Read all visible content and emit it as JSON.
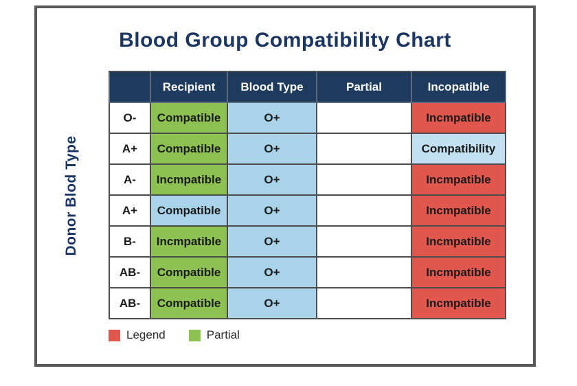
{
  "title": "Blood Group Compatibility Chart",
  "chart_data": {
    "type": "table",
    "title": "Blood Group Compatibility Chart",
    "y_axis_label": "Donor Blod Type",
    "headers": [
      "",
      "Recipient",
      "Blood Type",
      "Partial",
      "Incopatible"
    ],
    "rows": [
      {
        "cells": [
          {
            "text": "O-",
            "style": "white"
          },
          {
            "text": "Compatible",
            "style": "green"
          },
          {
            "text": "O+",
            "style": "blue"
          },
          {
            "text": "",
            "style": "white"
          },
          {
            "text": "Incmpatible",
            "style": "red"
          }
        ]
      },
      {
        "cells": [
          {
            "text": "A+",
            "style": "white"
          },
          {
            "text": "Compatible",
            "style": "green"
          },
          {
            "text": "O+",
            "style": "blue"
          },
          {
            "text": "",
            "style": "white"
          },
          {
            "text": "Compatibility",
            "style": "lightblue"
          }
        ]
      },
      {
        "cells": [
          {
            "text": "A-",
            "style": "white"
          },
          {
            "text": "Incmpatible",
            "style": "green"
          },
          {
            "text": "O+",
            "style": "blue"
          },
          {
            "text": "",
            "style": "white"
          },
          {
            "text": "Incmpatible",
            "style": "red"
          }
        ]
      },
      {
        "cells": [
          {
            "text": "A+",
            "style": "white"
          },
          {
            "text": "Compatible",
            "style": "blue"
          },
          {
            "text": "O+",
            "style": "blue"
          },
          {
            "text": "",
            "style": "white"
          },
          {
            "text": "Incmpatible",
            "style": "red"
          }
        ]
      },
      {
        "cells": [
          {
            "text": "B-",
            "style": "white"
          },
          {
            "text": "Incmpatible",
            "style": "green"
          },
          {
            "text": "O+",
            "style": "blue"
          },
          {
            "text": "",
            "style": "white"
          },
          {
            "text": "Incmpatible",
            "style": "red"
          }
        ]
      },
      {
        "cells": [
          {
            "text": "AB-",
            "style": "white"
          },
          {
            "text": "Compatible",
            "style": "green"
          },
          {
            "text": "O+",
            "style": "blue"
          },
          {
            "text": "",
            "style": "white"
          },
          {
            "text": "Incmpatible",
            "style": "red"
          }
        ]
      },
      {
        "cells": [
          {
            "text": "AB-",
            "style": "white"
          },
          {
            "text": "Compatible",
            "style": "green"
          },
          {
            "text": "O+",
            "style": "blue"
          },
          {
            "text": "",
            "style": "white"
          },
          {
            "text": "Incmpatible",
            "style": "red"
          }
        ]
      }
    ],
    "legend": [
      {
        "label": "Legend",
        "style": "red",
        "swatch": "#e1574e"
      },
      {
        "label": "Partial",
        "style": "green",
        "swatch": "#8dc152"
      }
    ]
  },
  "colors": {
    "title": "#1c3664",
    "header_bg": "#1e3a5c",
    "green": "#8dc152",
    "blue": "#a9d3e9",
    "lightblue": "#c2e0f2",
    "red": "#e1574e",
    "border": "#4d4d4d",
    "frame": "#58595b"
  }
}
